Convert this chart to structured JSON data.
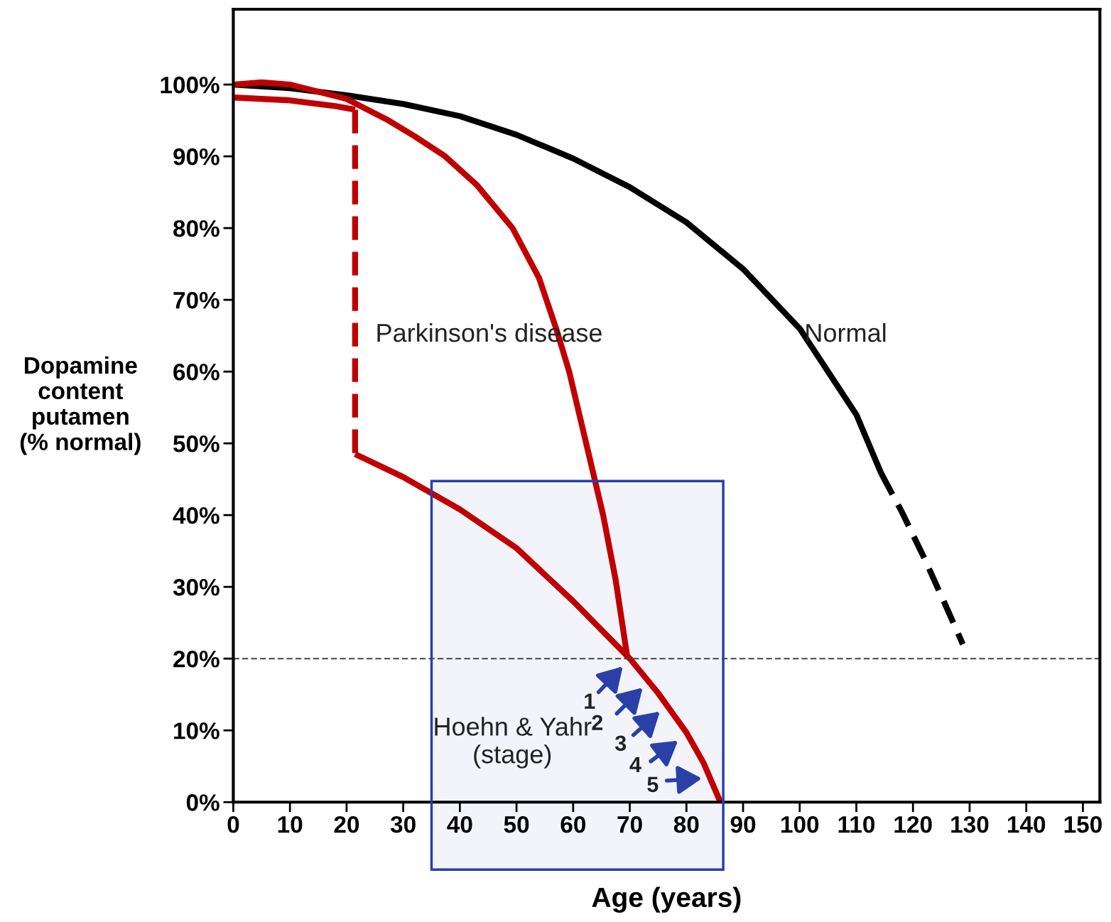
{
  "chart_data": {
    "type": "line",
    "xlabel": "Age (years)",
    "ylabel": "Dopamine\ncontent\nputamen\n(% normal)",
    "xlim": [
      0,
      153
    ],
    "ylim": [
      0,
      110.5
    ],
    "xticks": [
      0,
      10,
      20,
      30,
      40,
      50,
      60,
      70,
      80,
      90,
      100,
      110,
      120,
      130,
      140,
      150
    ],
    "yticks": [
      {
        "value": 0,
        "label": "0%"
      },
      {
        "value": 10,
        "label": "10%"
      },
      {
        "value": 20,
        "label": "20%"
      },
      {
        "value": 30,
        "label": "30%"
      },
      {
        "value": 40,
        "label": "40%"
      },
      {
        "value": 50,
        "label": "50%"
      },
      {
        "value": 60,
        "label": "60%"
      },
      {
        "value": 70,
        "label": "70%"
      },
      {
        "value": 80,
        "label": "80%"
      },
      {
        "value": 90,
        "label": "90%"
      },
      {
        "value": 100,
        "label": "100%"
      }
    ],
    "grid": false,
    "legend": false,
    "marker": "none",
    "series": [
      {
        "color": "#000000",
        "line_style": "solid",
        "x": [
          0,
          10,
          20,
          30,
          40,
          50,
          60,
          70,
          80,
          90,
          100,
          110,
          114.4
        ],
        "values": [
          100,
          99.5,
          98.5,
          97.3,
          95.6,
          93,
          89.7,
          85.7,
          80.8,
          74.3,
          66,
          54,
          45.8
        ]
      },
      {
        "color": "#000000",
        "line_style": "dashed",
        "x": [
          114.4,
          118,
          122,
          126,
          128.8
        ],
        "values": [
          45.8,
          40.5,
          34,
          27,
          22
        ]
      },
      {
        "color": "#c00000",
        "line_style": "solid",
        "x": [
          0,
          5,
          10,
          20,
          27.4,
          32,
          37.4,
          43,
          49.3,
          54,
          57,
          59.3,
          62,
          65.3,
          67.5,
          69.6
        ],
        "values": [
          100,
          100.3,
          100,
          98,
          95,
          92.8,
          90,
          86,
          80,
          73,
          66,
          60,
          51,
          40,
          31,
          20
        ]
      },
      {
        "color": "#c00000",
        "line_style": "solid",
        "x": [
          0,
          10,
          18,
          21.5
        ],
        "values": [
          98.2,
          97.8,
          97,
          96.5
        ]
      },
      {
        "color": "#c00000",
        "line_style": "dashed",
        "x": [
          21.5,
          21.5
        ],
        "values": [
          96.5,
          48.5
        ]
      },
      {
        "color": "#c00000",
        "line_style": "solid",
        "x": [
          21.5,
          30,
          40,
          50,
          60,
          70,
          75,
          80,
          83,
          86
        ],
        "values": [
          48.5,
          45.3,
          40.8,
          35.4,
          28,
          20,
          15.2,
          9.7,
          5.5,
          0
        ]
      }
    ],
    "ref_lines": [
      {
        "axis": "y",
        "value": 20,
        "color": "#444444",
        "line_style": "dashed"
      }
    ],
    "bands": [
      {
        "axis": "x",
        "from": 35,
        "to": 86.5,
        "color": "#2a3fa8"
      }
    ],
    "annotations": [
      "Parkinson's disease",
      "Normal",
      "Hoehn & Yahr\n(stage)",
      "1",
      "2",
      "3",
      "4",
      "5"
    ]
  }
}
